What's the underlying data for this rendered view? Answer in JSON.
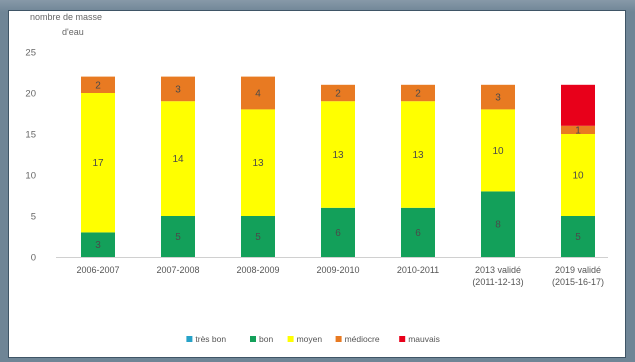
{
  "chart_data": {
    "type": "bar",
    "stacked": true,
    "ylabel_lines": [
      "nombre de masse",
      "d'eau"
    ],
    "ylim": [
      0,
      25
    ],
    "yticks": [
      0,
      5,
      10,
      15,
      20,
      25
    ],
    "grid": false,
    "legend_position": "bottom",
    "categories": [
      [
        "2006-2007"
      ],
      [
        "2007-2008"
      ],
      [
        "2008-2009"
      ],
      [
        "2009-2010"
      ],
      [
        "2010-2011"
      ],
      [
        "2013 validé",
        "(2011-12-13)"
      ],
      [
        "2019 validé",
        "(2015-16-17)"
      ]
    ],
    "series": [
      {
        "name": "très bon",
        "color": "#27a2c8",
        "values": [
          0,
          0,
          0,
          0,
          0,
          0,
          0
        ],
        "labels": [
          "",
          "",
          "",
          "",
          "",
          "",
          ""
        ]
      },
      {
        "name": "bon",
        "color": "#13a05a",
        "values": [
          3,
          5,
          5,
          6,
          6,
          8,
          5
        ],
        "labels": [
          "3",
          "5",
          "5",
          "6",
          "6",
          "8",
          "5"
        ]
      },
      {
        "name": "moyen",
        "color": "#ffff00",
        "values": [
          17,
          14,
          13,
          13,
          13,
          10,
          10
        ],
        "labels": [
          "17",
          "14",
          "13",
          "13",
          "13",
          "10",
          "10"
        ]
      },
      {
        "name": "médiocre",
        "color": "#e87a22",
        "values": [
          2,
          3,
          4,
          2,
          2,
          3,
          1
        ],
        "labels": [
          "2",
          "3",
          "4",
          "2",
          "2",
          "3",
          "1"
        ]
      },
      {
        "name": "mauvais",
        "color": "#e8001a",
        "values": [
          0,
          0,
          0,
          0,
          0,
          0,
          5
        ],
        "labels": [
          "",
          "",
          "",
          "",
          "",
          "",
          ""
        ]
      }
    ]
  }
}
